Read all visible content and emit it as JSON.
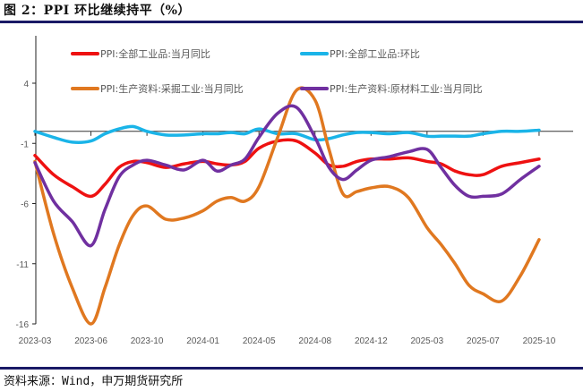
{
  "title": "图 2：PPI 环比继续持平（%）",
  "source": "资料来源：Wind，申万期货研究所",
  "chart_data": {
    "type": "line",
    "title": "",
    "xlabel": "",
    "ylabel": "",
    "ylim": [
      -16,
      4
    ],
    "yticks": [
      4,
      -1,
      -6,
      -11,
      -16
    ],
    "xtick_labels": [
      "2023-03",
      "2023-06",
      "2023-10",
      "2024-01",
      "2024-05",
      "2024-08",
      "2024-12",
      "2025-03",
      "2025-07",
      "2025-10"
    ],
    "grid": false,
    "legend_placement": "top",
    "x": [
      "2023-03",
      "2023-04",
      "2023-05",
      "2023-06",
      "2023-07",
      "2023-08",
      "2023-09",
      "2023-10",
      "2023-11",
      "2023-12",
      "2024-01",
      "2024-02",
      "2024-03",
      "2024-04",
      "2024-05",
      "2024-06",
      "2024-07",
      "2024-08",
      "2024-09",
      "2024-10",
      "2024-11",
      "2024-12",
      "2025-01",
      "2025-02",
      "2025-03",
      "2025-04",
      "2025-05",
      "2025-06",
      "2025-07",
      "2025-08",
      "2025-09",
      "2025-10"
    ],
    "series": [
      {
        "name": "PPI:全部工业品:当月同比",
        "color": "#ee1111",
        "values": [
          -2.0,
          -3.6,
          -4.6,
          -5.4,
          -4.4,
          -3.0,
          -2.5,
          -2.6,
          -3.0,
          -2.7,
          -2.5,
          -2.7,
          -2.8,
          -2.5,
          -1.4,
          -0.8,
          -0.8,
          -1.8,
          -2.8,
          -2.9,
          -2.5,
          -2.3,
          -2.3,
          -2.2,
          -2.5,
          -2.7,
          -3.3,
          -3.6,
          -3.6,
          -2.9,
          -2.6,
          -2.3
        ]
      },
      {
        "name": "PPI:全部工业品:环比",
        "color": "#1ab4e8",
        "values": [
          0.0,
          -0.5,
          -0.9,
          -0.8,
          -0.2,
          0.2,
          0.4,
          0.0,
          -0.3,
          -0.3,
          -0.2,
          -0.2,
          -0.1,
          -0.2,
          0.2,
          -0.2,
          -0.2,
          -0.7,
          -0.6,
          -0.3,
          -0.1,
          -0.1,
          -0.2,
          -0.1,
          -0.4,
          -0.4,
          -0.4,
          -0.4,
          -0.2,
          0.0,
          0.0,
          0.1
        ]
      },
      {
        "name": "PPI:生产资料:采掘工业:当月同比",
        "color": "#e07820",
        "values": [
          -2.5,
          -8.5,
          -13.0,
          -16.0,
          -13.0,
          -9.5,
          -7.0,
          -6.2,
          -7.3,
          -7.2,
          -6.6,
          -5.8,
          -5.5,
          -5.8,
          -4.6,
          -0.5,
          3.4,
          2.6,
          -1.5,
          -5.2,
          -5.0,
          -4.7,
          -4.6,
          -5.5,
          -8.0,
          -9.4,
          -11.0,
          -12.8,
          -13.5,
          -14.1,
          -12.0,
          -9.0
        ]
      },
      {
        "name": "PPI:生产资料:原材料工业:当月同比",
        "color": "#7030a0",
        "values": [
          -2.6,
          -5.8,
          -7.5,
          -9.5,
          -6.5,
          -3.8,
          -2.8,
          -2.4,
          -2.8,
          -3.2,
          -2.4,
          -3.3,
          -2.8,
          -2.3,
          -0.5,
          1.5,
          2.0,
          -0.5,
          -3.0,
          -4.0,
          -3.2,
          -2.4,
          -2.1,
          -1.7,
          -1.5,
          -3.0,
          -4.5,
          -5.4,
          -5.4,
          -5.2,
          -4.0,
          -2.9
        ]
      }
    ]
  }
}
